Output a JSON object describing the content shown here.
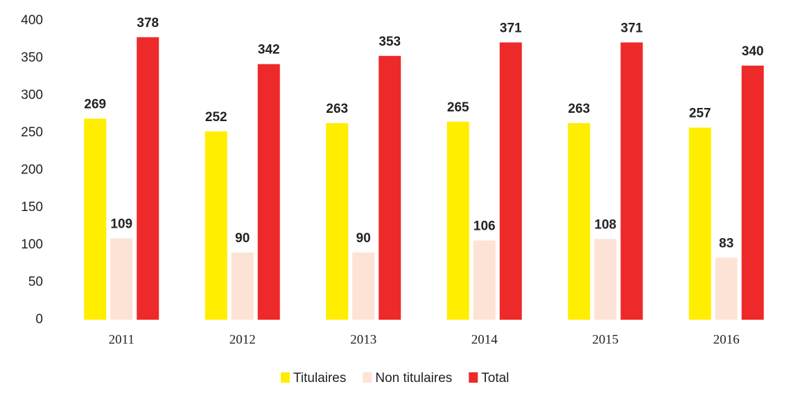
{
  "chart_data": {
    "type": "bar",
    "categories": [
      "2011",
      "2012",
      "2013",
      "2014",
      "2015",
      "2016"
    ],
    "series": [
      {
        "name": "Titulaires",
        "color": "#ffee00",
        "values": [
          269,
          252,
          263,
          265,
          263,
          257
        ]
      },
      {
        "name": "Non titulaires",
        "color": "#fde3d6",
        "values": [
          109,
          90,
          90,
          106,
          108,
          83
        ]
      },
      {
        "name": "Total",
        "color": "#ee2929",
        "values": [
          378,
          342,
          353,
          371,
          371,
          340
        ]
      }
    ],
    "ylim": [
      0,
      400
    ],
    "yticks": [
      0,
      50,
      100,
      150,
      200,
      250,
      300,
      350,
      400
    ],
    "grid": false,
    "legend": "bottom"
  }
}
